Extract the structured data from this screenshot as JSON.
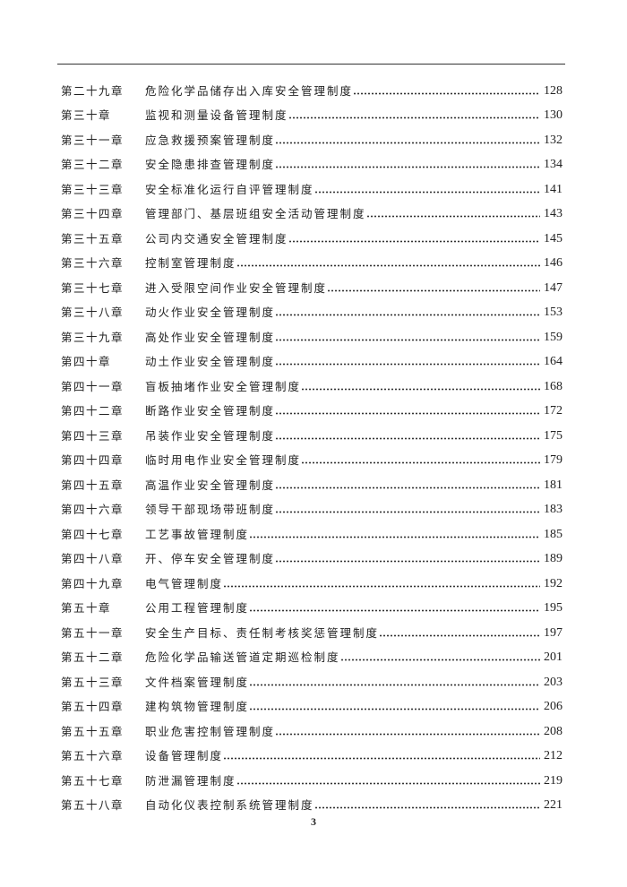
{
  "toc": [
    {
      "chapter": "第二十九章",
      "title": "危险化学品储存出入库安全管理制度",
      "page": "128"
    },
    {
      "chapter": "第三十章",
      "title": "监视和测量设备管理制度",
      "page": "130"
    },
    {
      "chapter": "第三十一章",
      "title": "应急救援预案管理制度",
      "page": "132"
    },
    {
      "chapter": "第三十二章",
      "title": "安全隐患排查管理制度",
      "page": "134"
    },
    {
      "chapter": "第三十三章",
      "title": "安全标准化运行自评管理制度",
      "page": "141"
    },
    {
      "chapter": "第三十四章",
      "title": "管理部门、基层班组安全活动管理制度",
      "page": "143"
    },
    {
      "chapter": "第三十五章",
      "title": "公司内交通安全管理制度",
      "page": "145"
    },
    {
      "chapter": "第三十六章",
      "title": "控制室管理制度",
      "page": "146"
    },
    {
      "chapter": "第三十七章",
      "title": "进入受限空间作业安全管理制度",
      "page": "147"
    },
    {
      "chapter": "第三十八章",
      "title": "动火作业安全管理制度",
      "page": "153"
    },
    {
      "chapter": "第三十九章",
      "title": "高处作业安全管理制度",
      "page": "159"
    },
    {
      "chapter": "第四十章",
      "title": "动土作业安全管理制度",
      "page": "164"
    },
    {
      "chapter": "第四十一章",
      "title": "盲板抽堵作业安全管理制度",
      "page": "168"
    },
    {
      "chapter": "第四十二章",
      "title": "断路作业安全管理制度",
      "page": "172"
    },
    {
      "chapter": "第四十三章",
      "title": "吊装作业安全管理制度",
      "page": "175"
    },
    {
      "chapter": "第四十四章",
      "title": "临时用电作业安全管理制度",
      "page": "179"
    },
    {
      "chapter": "第四十五章",
      "title": "高温作业安全管理制度",
      "page": "181"
    },
    {
      "chapter": "第四十六章",
      "title": "领导干部现场带班制度",
      "page": "183"
    },
    {
      "chapter": "第四十七章",
      "title": "工艺事故管理制度",
      "page": "185"
    },
    {
      "chapter": "第四十八章",
      "title": "开、停车安全管理制度",
      "page": "189"
    },
    {
      "chapter": "第四十九章",
      "title": "电气管理制度",
      "page": "192"
    },
    {
      "chapter": "第五十章",
      "title": "公用工程管理制度",
      "page": "195"
    },
    {
      "chapter": "第五十一章",
      "title": "安全生产目标、责任制考核奖惩管理制度",
      "page": "197"
    },
    {
      "chapter": "第五十二章",
      "title": "危险化学品输送管道定期巡检制度",
      "page": "201"
    },
    {
      "chapter": "第五十三章",
      "title": "文件档案管理制度",
      "page": "203"
    },
    {
      "chapter": "第五十四章",
      "title": "建构筑物管理制度",
      "page": "206"
    },
    {
      "chapter": "第五十五章",
      "title": "职业危害控制管理制度",
      "page": "208"
    },
    {
      "chapter": "第五十六章",
      "title": "设备管理制度",
      "page": "212"
    },
    {
      "chapter": "第五十七章",
      "title": "防泄漏管理制度",
      "page": "219"
    },
    {
      "chapter": "第五十八章",
      "title": "自动化仪表控制系统管理制度",
      "page": "221"
    }
  ],
  "page_number": "3"
}
